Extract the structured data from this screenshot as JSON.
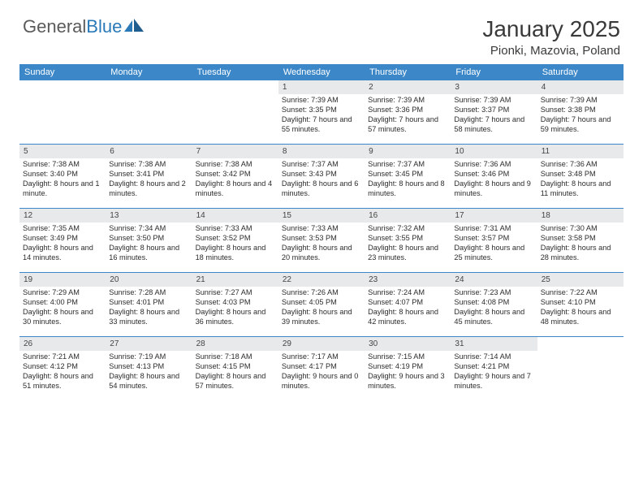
{
  "brand": {
    "part1": "General",
    "part2": "Blue"
  },
  "title": {
    "month": "January 2025",
    "location": "Pionki, Mazovia, Poland"
  },
  "colors": {
    "header_bg": "#3b87c8",
    "header_text": "#ffffff",
    "daynum_bg": "#e8e9ea",
    "cell_text": "#2c2c2c",
    "rule": "#3b87c8",
    "logo_gray": "#5a5a5a",
    "logo_blue": "#2a7ab8"
  },
  "day_names": [
    "Sunday",
    "Monday",
    "Tuesday",
    "Wednesday",
    "Thursday",
    "Friday",
    "Saturday"
  ],
  "weeks": [
    [
      {
        "n": "",
        "sr": "",
        "ss": "",
        "dl": ""
      },
      {
        "n": "",
        "sr": "",
        "ss": "",
        "dl": ""
      },
      {
        "n": "",
        "sr": "",
        "ss": "",
        "dl": ""
      },
      {
        "n": "1",
        "sr": "Sunrise: 7:39 AM",
        "ss": "Sunset: 3:35 PM",
        "dl": "Daylight: 7 hours and 55 minutes."
      },
      {
        "n": "2",
        "sr": "Sunrise: 7:39 AM",
        "ss": "Sunset: 3:36 PM",
        "dl": "Daylight: 7 hours and 57 minutes."
      },
      {
        "n": "3",
        "sr": "Sunrise: 7:39 AM",
        "ss": "Sunset: 3:37 PM",
        "dl": "Daylight: 7 hours and 58 minutes."
      },
      {
        "n": "4",
        "sr": "Sunrise: 7:39 AM",
        "ss": "Sunset: 3:38 PM",
        "dl": "Daylight: 7 hours and 59 minutes."
      }
    ],
    [
      {
        "n": "5",
        "sr": "Sunrise: 7:38 AM",
        "ss": "Sunset: 3:40 PM",
        "dl": "Daylight: 8 hours and 1 minute."
      },
      {
        "n": "6",
        "sr": "Sunrise: 7:38 AM",
        "ss": "Sunset: 3:41 PM",
        "dl": "Daylight: 8 hours and 2 minutes."
      },
      {
        "n": "7",
        "sr": "Sunrise: 7:38 AM",
        "ss": "Sunset: 3:42 PM",
        "dl": "Daylight: 8 hours and 4 minutes."
      },
      {
        "n": "8",
        "sr": "Sunrise: 7:37 AM",
        "ss": "Sunset: 3:43 PM",
        "dl": "Daylight: 8 hours and 6 minutes."
      },
      {
        "n": "9",
        "sr": "Sunrise: 7:37 AM",
        "ss": "Sunset: 3:45 PM",
        "dl": "Daylight: 8 hours and 8 minutes."
      },
      {
        "n": "10",
        "sr": "Sunrise: 7:36 AM",
        "ss": "Sunset: 3:46 PM",
        "dl": "Daylight: 8 hours and 9 minutes."
      },
      {
        "n": "11",
        "sr": "Sunrise: 7:36 AM",
        "ss": "Sunset: 3:48 PM",
        "dl": "Daylight: 8 hours and 11 minutes."
      }
    ],
    [
      {
        "n": "12",
        "sr": "Sunrise: 7:35 AM",
        "ss": "Sunset: 3:49 PM",
        "dl": "Daylight: 8 hours and 14 minutes."
      },
      {
        "n": "13",
        "sr": "Sunrise: 7:34 AM",
        "ss": "Sunset: 3:50 PM",
        "dl": "Daylight: 8 hours and 16 minutes."
      },
      {
        "n": "14",
        "sr": "Sunrise: 7:33 AM",
        "ss": "Sunset: 3:52 PM",
        "dl": "Daylight: 8 hours and 18 minutes."
      },
      {
        "n": "15",
        "sr": "Sunrise: 7:33 AM",
        "ss": "Sunset: 3:53 PM",
        "dl": "Daylight: 8 hours and 20 minutes."
      },
      {
        "n": "16",
        "sr": "Sunrise: 7:32 AM",
        "ss": "Sunset: 3:55 PM",
        "dl": "Daylight: 8 hours and 23 minutes."
      },
      {
        "n": "17",
        "sr": "Sunrise: 7:31 AM",
        "ss": "Sunset: 3:57 PM",
        "dl": "Daylight: 8 hours and 25 minutes."
      },
      {
        "n": "18",
        "sr": "Sunrise: 7:30 AM",
        "ss": "Sunset: 3:58 PM",
        "dl": "Daylight: 8 hours and 28 minutes."
      }
    ],
    [
      {
        "n": "19",
        "sr": "Sunrise: 7:29 AM",
        "ss": "Sunset: 4:00 PM",
        "dl": "Daylight: 8 hours and 30 minutes."
      },
      {
        "n": "20",
        "sr": "Sunrise: 7:28 AM",
        "ss": "Sunset: 4:01 PM",
        "dl": "Daylight: 8 hours and 33 minutes."
      },
      {
        "n": "21",
        "sr": "Sunrise: 7:27 AM",
        "ss": "Sunset: 4:03 PM",
        "dl": "Daylight: 8 hours and 36 minutes."
      },
      {
        "n": "22",
        "sr": "Sunrise: 7:26 AM",
        "ss": "Sunset: 4:05 PM",
        "dl": "Daylight: 8 hours and 39 minutes."
      },
      {
        "n": "23",
        "sr": "Sunrise: 7:24 AM",
        "ss": "Sunset: 4:07 PM",
        "dl": "Daylight: 8 hours and 42 minutes."
      },
      {
        "n": "24",
        "sr": "Sunrise: 7:23 AM",
        "ss": "Sunset: 4:08 PM",
        "dl": "Daylight: 8 hours and 45 minutes."
      },
      {
        "n": "25",
        "sr": "Sunrise: 7:22 AM",
        "ss": "Sunset: 4:10 PM",
        "dl": "Daylight: 8 hours and 48 minutes."
      }
    ],
    [
      {
        "n": "26",
        "sr": "Sunrise: 7:21 AM",
        "ss": "Sunset: 4:12 PM",
        "dl": "Daylight: 8 hours and 51 minutes."
      },
      {
        "n": "27",
        "sr": "Sunrise: 7:19 AM",
        "ss": "Sunset: 4:13 PM",
        "dl": "Daylight: 8 hours and 54 minutes."
      },
      {
        "n": "28",
        "sr": "Sunrise: 7:18 AM",
        "ss": "Sunset: 4:15 PM",
        "dl": "Daylight: 8 hours and 57 minutes."
      },
      {
        "n": "29",
        "sr": "Sunrise: 7:17 AM",
        "ss": "Sunset: 4:17 PM",
        "dl": "Daylight: 9 hours and 0 minutes."
      },
      {
        "n": "30",
        "sr": "Sunrise: 7:15 AM",
        "ss": "Sunset: 4:19 PM",
        "dl": "Daylight: 9 hours and 3 minutes."
      },
      {
        "n": "31",
        "sr": "Sunrise: 7:14 AM",
        "ss": "Sunset: 4:21 PM",
        "dl": "Daylight: 9 hours and 7 minutes."
      },
      {
        "n": "",
        "sr": "",
        "ss": "",
        "dl": ""
      }
    ]
  ]
}
